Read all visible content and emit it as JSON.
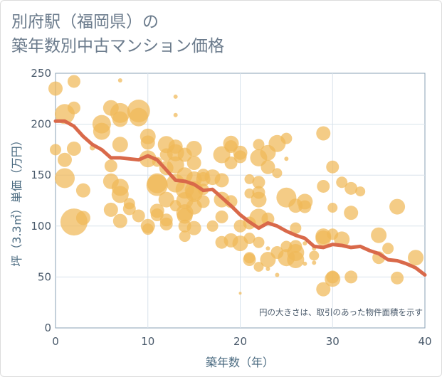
{
  "title_line1": "別府駅（福岡県）の",
  "title_line2": "築年数別中古マンション価格",
  "chart_data": {
    "type": "scatter",
    "title": "別府駅（福岡県）の築年数別中古マンション価格",
    "xlabel": "築年数（年）",
    "ylabel": "坪（3.3㎡）単価（万円）",
    "xlim": [
      0,
      40
    ],
    "ylim": [
      0,
      250
    ],
    "xticks": [
      "0",
      "10",
      "20",
      "30",
      "40"
    ],
    "yticks": [
      "0",
      "50",
      "100",
      "150",
      "200",
      "250"
    ],
    "grid": true,
    "annotation": "円の大きさは、取引のあった物件面積を示す",
    "colors": {
      "bubble": "#f0b958",
      "line": "#d9694a",
      "grid": "#d8e2ec",
      "axis": "#8aa0b4"
    },
    "trend_line": {
      "x": [
        0,
        1,
        2,
        3,
        4,
        5,
        6,
        7,
        8,
        9,
        10,
        11,
        12,
        13,
        14,
        15,
        16,
        17,
        18,
        19,
        20,
        21,
        22,
        23,
        24,
        25,
        26,
        27,
        28,
        29,
        30,
        31,
        32,
        33,
        34,
        35,
        36,
        37,
        38,
        39,
        40
      ],
      "y": [
        203,
        203,
        198,
        188,
        180,
        175,
        167,
        167,
        166,
        165,
        169,
        165,
        155,
        145,
        144,
        141,
        135,
        136,
        128,
        120,
        111,
        104,
        98,
        103,
        100,
        95,
        91,
        88,
        80,
        79,
        82,
        81,
        79,
        80,
        76,
        73,
        67,
        66,
        63,
        59,
        52
      ]
    },
    "points": [
      {
        "x": 0,
        "y": 235,
        "s": 10
      },
      {
        "x": 0,
        "y": 175,
        "s": 8
      },
      {
        "x": 1,
        "y": 210,
        "s": 14
      },
      {
        "x": 1,
        "y": 165,
        "s": 10
      },
      {
        "x": 1,
        "y": 147,
        "s": 14
      },
      {
        "x": 2,
        "y": 242,
        "s": 9
      },
      {
        "x": 2,
        "y": 216,
        "s": 9
      },
      {
        "x": 2,
        "y": 176,
        "s": 10
      },
      {
        "x": 2,
        "y": 104,
        "s": 19
      },
      {
        "x": 3,
        "y": 135,
        "s": 10
      },
      {
        "x": 3,
        "y": 108,
        "s": 10
      },
      {
        "x": 4,
        "y": 177,
        "s": 4
      },
      {
        "x": 5,
        "y": 200,
        "s": 13
      },
      {
        "x": 5,
        "y": 193,
        "s": 12
      },
      {
        "x": 6,
        "y": 216,
        "s": 11
      },
      {
        "x": 6,
        "y": 159,
        "s": 9
      },
      {
        "x": 6,
        "y": 144,
        "s": 11
      },
      {
        "x": 6,
        "y": 116,
        "s": 10
      },
      {
        "x": 7,
        "y": 211,
        "s": 14
      },
      {
        "x": 7,
        "y": 205,
        "s": 11
      },
      {
        "x": 7,
        "y": 180,
        "s": 11
      },
      {
        "x": 7,
        "y": 138,
        "s": 12
      },
      {
        "x": 7,
        "y": 131,
        "s": 12
      },
      {
        "x": 7,
        "y": 105,
        "s": 10
      },
      {
        "x": 7,
        "y": 243,
        "s": 3
      },
      {
        "x": 8,
        "y": 117,
        "s": 9
      },
      {
        "x": 8,
        "y": 122,
        "s": 8
      },
      {
        "x": 9,
        "y": 213,
        "s": 16
      },
      {
        "x": 9,
        "y": 207,
        "s": 13
      },
      {
        "x": 9,
        "y": 110,
        "s": 9
      },
      {
        "x": 10,
        "y": 188,
        "s": 11
      },
      {
        "x": 10,
        "y": 182,
        "s": 10
      },
      {
        "x": 10,
        "y": 166,
        "s": 12
      },
      {
        "x": 10,
        "y": 100,
        "s": 10
      },
      {
        "x": 10,
        "y": 97,
        "s": 8
      },
      {
        "x": 11,
        "y": 163,
        "s": 7
      },
      {
        "x": 11,
        "y": 142,
        "s": 14
      },
      {
        "x": 11,
        "y": 140,
        "s": 15
      },
      {
        "x": 11,
        "y": 115,
        "s": 10
      },
      {
        "x": 11,
        "y": 111,
        "s": 9
      },
      {
        "x": 12,
        "y": 180,
        "s": 12
      },
      {
        "x": 12,
        "y": 170,
        "s": 9
      },
      {
        "x": 12,
        "y": 157,
        "s": 10
      },
      {
        "x": 12,
        "y": 126,
        "s": 11
      },
      {
        "x": 12,
        "y": 106,
        "s": 9
      },
      {
        "x": 12,
        "y": 102,
        "s": 9
      },
      {
        "x": 13,
        "y": 227,
        "s": 3
      },
      {
        "x": 13,
        "y": 209,
        "s": 3
      },
      {
        "x": 13,
        "y": 178,
        "s": 10
      },
      {
        "x": 13,
        "y": 172,
        "s": 12
      },
      {
        "x": 13,
        "y": 160,
        "s": 12
      },
      {
        "x": 13,
        "y": 142,
        "s": 13
      },
      {
        "x": 13,
        "y": 120,
        "s": 8
      },
      {
        "x": 14,
        "y": 170,
        "s": 10
      },
      {
        "x": 14,
        "y": 150,
        "s": 11
      },
      {
        "x": 14,
        "y": 136,
        "s": 13
      },
      {
        "x": 14,
        "y": 125,
        "s": 12
      },
      {
        "x": 14,
        "y": 113,
        "s": 12
      },
      {
        "x": 14,
        "y": 110,
        "s": 11
      },
      {
        "x": 14,
        "y": 100,
        "s": 9
      },
      {
        "x": 14,
        "y": 90,
        "s": 8
      },
      {
        "x": 15,
        "y": 176,
        "s": 11
      },
      {
        "x": 15,
        "y": 162,
        "s": 10
      },
      {
        "x": 15,
        "y": 146,
        "s": 11
      },
      {
        "x": 15,
        "y": 135,
        "s": 13
      },
      {
        "x": 15,
        "y": 132,
        "s": 12
      },
      {
        "x": 15,
        "y": 119,
        "s": 11
      },
      {
        "x": 15,
        "y": 98,
        "s": 10
      },
      {
        "x": 16,
        "y": 150,
        "s": 9
      },
      {
        "x": 16,
        "y": 146,
        "s": 10
      },
      {
        "x": 16,
        "y": 136,
        "s": 8
      },
      {
        "x": 16,
        "y": 124,
        "s": 9
      },
      {
        "x": 17,
        "y": 148,
        "s": 11
      },
      {
        "x": 17,
        "y": 100,
        "s": 8
      },
      {
        "x": 18,
        "y": 170,
        "s": 12
      },
      {
        "x": 18,
        "y": 145,
        "s": 10
      },
      {
        "x": 18,
        "y": 126,
        "s": 11
      },
      {
        "x": 18,
        "y": 109,
        "s": 9
      },
      {
        "x": 18,
        "y": 84,
        "s": 9
      },
      {
        "x": 19,
        "y": 181,
        "s": 11
      },
      {
        "x": 19,
        "y": 178,
        "s": 9
      },
      {
        "x": 19,
        "y": 162,
        "s": 9
      },
      {
        "x": 19,
        "y": 124,
        "s": 9
      },
      {
        "x": 19,
        "y": 86,
        "s": 10
      },
      {
        "x": 20,
        "y": 172,
        "s": 10
      },
      {
        "x": 20,
        "y": 168,
        "s": 9
      },
      {
        "x": 20,
        "y": 100,
        "s": 9
      },
      {
        "x": 20,
        "y": 83,
        "s": 11
      },
      {
        "x": 20,
        "y": 34,
        "s": 2
      },
      {
        "x": 21,
        "y": 146,
        "s": 7
      },
      {
        "x": 21,
        "y": 132,
        "s": 7
      },
      {
        "x": 21,
        "y": 103,
        "s": 9
      },
      {
        "x": 21,
        "y": 88,
        "s": 8
      },
      {
        "x": 21,
        "y": 67,
        "s": 9
      },
      {
        "x": 21,
        "y": 69,
        "s": 8
      },
      {
        "x": 22,
        "y": 180,
        "s": 8
      },
      {
        "x": 22,
        "y": 167,
        "s": 12
      },
      {
        "x": 22,
        "y": 143,
        "s": 9
      },
      {
        "x": 22,
        "y": 133,
        "s": 9
      },
      {
        "x": 22,
        "y": 126,
        "s": 11
      },
      {
        "x": 22,
        "y": 108,
        "s": 13
      },
      {
        "x": 22,
        "y": 84,
        "s": 8
      },
      {
        "x": 22,
        "y": 60,
        "s": 7
      },
      {
        "x": 23,
        "y": 172,
        "s": 11
      },
      {
        "x": 23,
        "y": 158,
        "s": 10
      },
      {
        "x": 23,
        "y": 107,
        "s": 9
      },
      {
        "x": 23,
        "y": 67,
        "s": 11
      },
      {
        "x": 23,
        "y": 78,
        "s": 3
      },
      {
        "x": 23,
        "y": 58,
        "s": 3
      },
      {
        "x": 24,
        "y": 181,
        "s": 12
      },
      {
        "x": 24,
        "y": 152,
        "s": 7
      },
      {
        "x": 24,
        "y": 74,
        "s": 9
      },
      {
        "x": 24,
        "y": 52,
        "s": 3
      },
      {
        "x": 25,
        "y": 186,
        "s": 8
      },
      {
        "x": 25,
        "y": 166,
        "s": 3
      },
      {
        "x": 25,
        "y": 128,
        "s": 14
      },
      {
        "x": 25,
        "y": 80,
        "s": 8
      },
      {
        "x": 25,
        "y": 69,
        "s": 12
      },
      {
        "x": 26,
        "y": 120,
        "s": 10
      },
      {
        "x": 26,
        "y": 98,
        "s": 8
      },
      {
        "x": 26,
        "y": 80,
        "s": 9
      },
      {
        "x": 26,
        "y": 74,
        "s": 12
      },
      {
        "x": 26,
        "y": 67,
        "s": 12
      },
      {
        "x": 27,
        "y": 124,
        "s": 11
      },
      {
        "x": 27,
        "y": 119,
        "s": 9
      },
      {
        "x": 27,
        "y": 63,
        "s": 3
      },
      {
        "x": 27,
        "y": 83,
        "s": 3
      },
      {
        "x": 28,
        "y": 78,
        "s": 3
      },
      {
        "x": 28,
        "y": 71,
        "s": 7
      },
      {
        "x": 28,
        "y": 64,
        "s": 3
      },
      {
        "x": 29,
        "y": 191,
        "s": 10
      },
      {
        "x": 29,
        "y": 139,
        "s": 9
      },
      {
        "x": 29,
        "y": 90,
        "s": 11
      },
      {
        "x": 29,
        "y": 88,
        "s": 11
      },
      {
        "x": 29,
        "y": 38,
        "s": 10
      },
      {
        "x": 30,
        "y": 158,
        "s": 9
      },
      {
        "x": 30,
        "y": 118,
        "s": 7
      },
      {
        "x": 30,
        "y": 48,
        "s": 11
      },
      {
        "x": 30,
        "y": 50,
        "s": 9
      },
      {
        "x": 30,
        "y": 92,
        "s": 8
      },
      {
        "x": 31,
        "y": 143,
        "s": 8
      },
      {
        "x": 31,
        "y": 87,
        "s": 11
      },
      {
        "x": 32,
        "y": 137,
        "s": 9
      },
      {
        "x": 32,
        "y": 113,
        "s": 10
      },
      {
        "x": 32,
        "y": 50,
        "s": 9
      },
      {
        "x": 33,
        "y": 134,
        "s": 7
      },
      {
        "x": 35,
        "y": 91,
        "s": 11
      },
      {
        "x": 35,
        "y": 69,
        "s": 9
      },
      {
        "x": 36,
        "y": 78,
        "s": 8
      },
      {
        "x": 37,
        "y": 119,
        "s": 11
      },
      {
        "x": 37,
        "y": 49,
        "s": 9
      },
      {
        "x": 39,
        "y": 69,
        "s": 11
      }
    ]
  }
}
